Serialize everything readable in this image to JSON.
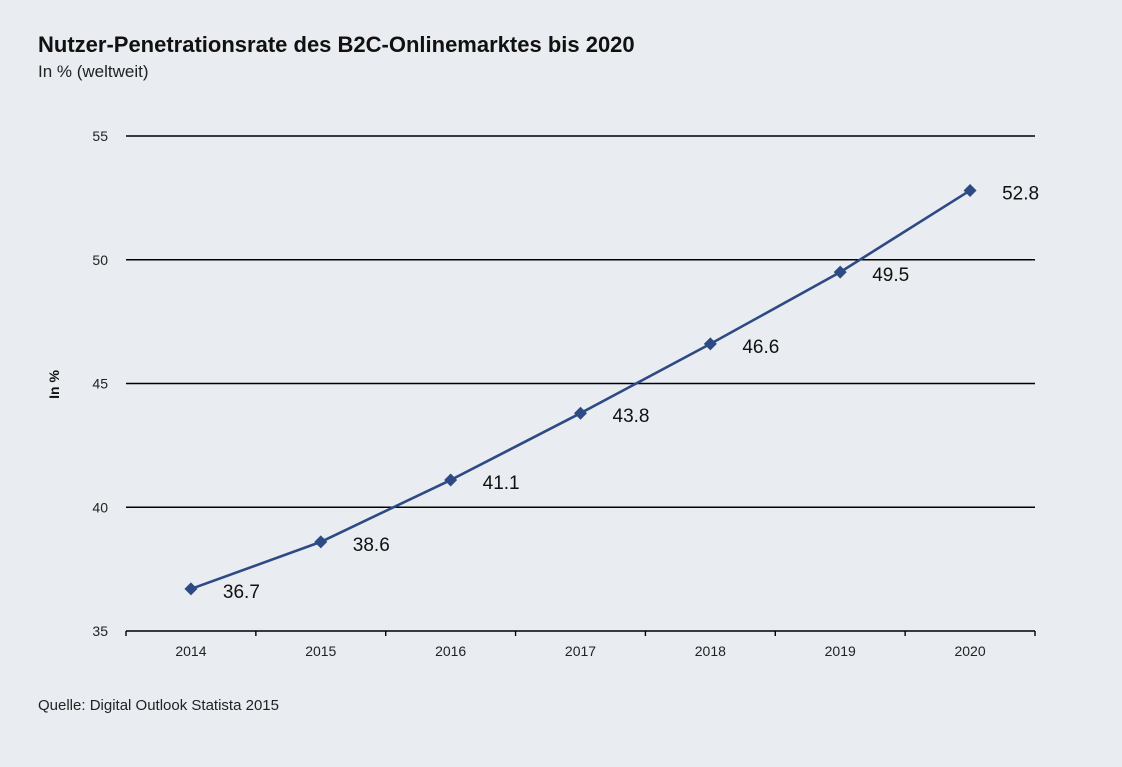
{
  "title": "Nutzer-Penetrationsrate des B2C-Onlinemarktes bis 2020",
  "subtitle": "In % (weltweit)",
  "source": "Quelle: Digital Outlook Statista 2015",
  "colors": {
    "line": "#2e4a85",
    "marker": "#2e4a85",
    "grid": "#000000",
    "background": "#e9ecf1"
  },
  "chart_data": {
    "type": "line",
    "title": "Nutzer-Penetrationsrate des B2C-Onlinemarktes bis 2020",
    "subtitle": "In % (weltweit)",
    "xlabel": "",
    "ylabel": "In %",
    "categories": [
      "2014",
      "2015",
      "2016",
      "2017",
      "2018",
      "2019",
      "2020"
    ],
    "series": [
      {
        "values": [
          36.7,
          38.6,
          41.1,
          43.8,
          46.6,
          49.5,
          52.8
        ],
        "labels": [
          "36.7",
          "38.6",
          "41.1",
          "43.8",
          "46.6",
          "49.5",
          "52.8"
        ]
      }
    ],
    "ylim": [
      35,
      55
    ],
    "yticks": [
      "35",
      "40",
      "45",
      "50",
      "55"
    ],
    "grid": true,
    "legend": "none"
  }
}
